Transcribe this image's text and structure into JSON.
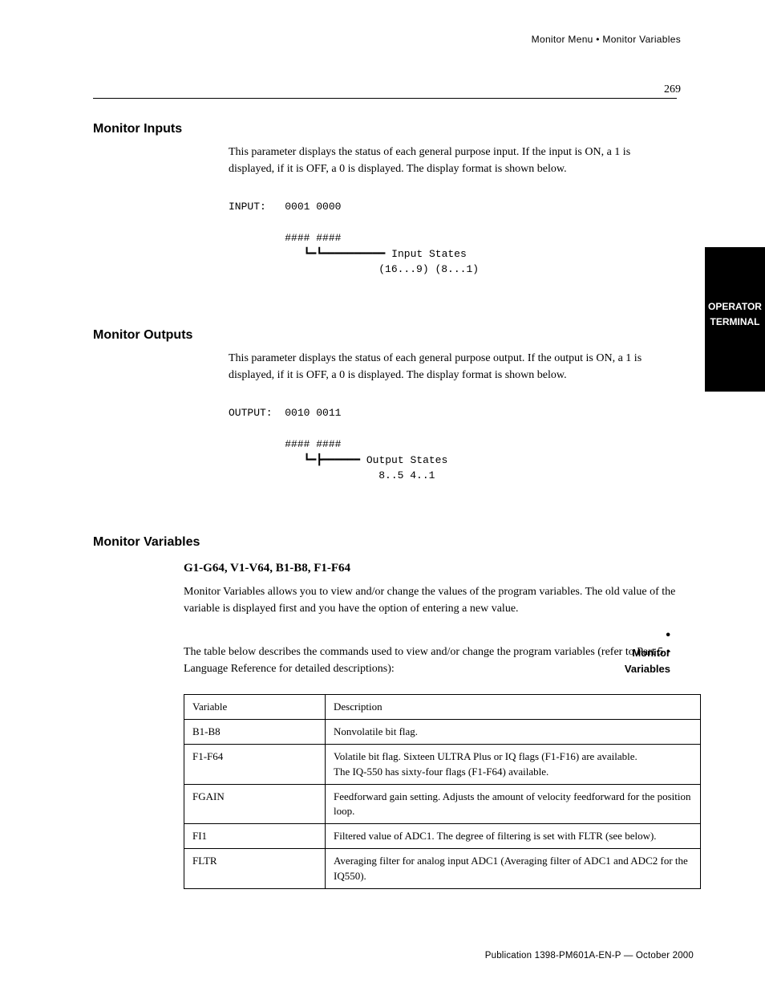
{
  "header": {
    "breadcrumb": "Monitor Menu • Monitor Variables",
    "page_number": "269"
  },
  "side_tab": {
    "line1": "OPERATOR",
    "line2": "TERMINAL"
  },
  "side_marker": {
    "bullet": "•",
    "line1": "Monitor",
    "line2": "Variables"
  },
  "sections": {
    "monitor_inputs": {
      "title": "Monitor Inputs",
      "body1": "This parameter displays the status of each general purpose input. If the input is ON, a 1 is displayed, if it is OFF, a 0 is displayed. The display format is shown below.",
      "code": "INPUT:   0001 0000\n\n         #### ####\n            ┗━┗━━━━━━━━━━ Input States\n                        (16...9) (8...1)"
    },
    "monitor_outputs": {
      "title": "Monitor Outputs",
      "body1": "This parameter displays the status of each general purpose output. If the output is ON, a 1 is displayed, if it is OFF, a 0 is displayed. The display format is shown below.",
      "code": "OUTPUT:  0010 0011\n\n         #### ####\n            ┗━┣━━━━━━ Output States\n                        8..5 4..1"
    },
    "monitor_variables": {
      "title": "Monitor Variables",
      "body1": "Monitor Variables allows you to view and/or change the values of the program variables. The old value of the variable is displayed first and you have the option of entering a new value.",
      "body2": "The table below describes the commands used to view and/or change the program variables (refer to Part 5",
      "body2_bullet": "•",
      "body2_after": " Language Reference for detailed descriptions):"
    }
  },
  "table": {
    "rows": [
      {
        "c1": "Variable",
        "c2": "Description"
      },
      {
        "c1": "B1-B8",
        "c2": "Nonvolatile bit flag."
      },
      {
        "c1": "F1-F64",
        "c2": "Volatile bit flag. Sixteen ULTRA Plus or IQ flags (F1-F16) are available.\nThe IQ-550 has sixty-four flags (F1-F64) available."
      },
      {
        "c1": "FGAIN",
        "c2": "Feedforward gain setting. Adjusts the amount of velocity feedforward for the position loop."
      },
      {
        "c1": "FI1",
        "c2": "Filtered value of ADC1. The degree of filtering is set with FLTR (see below)."
      },
      {
        "c1": "FLTR",
        "c2": "Averaging filter for analog input ADC1 (Averaging filter of ADC1 and ADC2 for the IQ550)."
      }
    ]
  },
  "footer": {
    "text": "Publication 1398-PM601A-EN-P — October 2000"
  }
}
